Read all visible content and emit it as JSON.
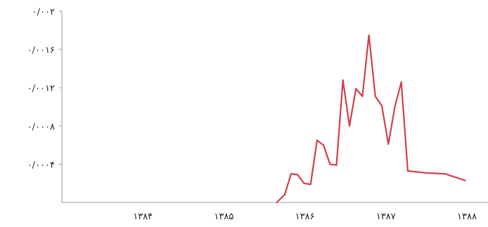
{
  "chart_data": {
    "type": "line",
    "title": "",
    "xlabel": "",
    "ylabel": "",
    "grid": false,
    "legend": "none",
    "xlim": [
      1383.0,
      1388.0
    ],
    "ylim": [
      0,
      0.002
    ],
    "x_ticks": [
      {
        "value": 1384,
        "label": "۱۳۸۴"
      },
      {
        "value": 1385,
        "label": "۱۳۸۵"
      },
      {
        "value": 1386,
        "label": "۱۳۸۶"
      },
      {
        "value": 1387,
        "label": "۱۳۸۷"
      },
      {
        "value": 1388,
        "label": "۱۳۸۸"
      }
    ],
    "y_ticks": [
      {
        "value": 0.0004,
        "label": "۰/۰۰۰۴"
      },
      {
        "value": 0.0008,
        "label": "۰/۰۰۰۸"
      },
      {
        "value": 0.0012,
        "label": "۰/۰۰۱۲"
      },
      {
        "value": 0.0016,
        "label": "۰/۰۰۱۶"
      },
      {
        "value": 0.002,
        "label": "۰/۰۰۲"
      }
    ],
    "series": [
      {
        "color": "#d0404a",
        "points": [
          [
            1385.65,
            0.0
          ],
          [
            1385.75,
            8e-05
          ],
          [
            1385.83,
            0.0003
          ],
          [
            1385.91,
            0.00029
          ],
          [
            1385.99,
            0.0002
          ],
          [
            1386.07,
            0.00019
          ],
          [
            1386.15,
            0.00065
          ],
          [
            1386.23,
            0.0006
          ],
          [
            1386.31,
            0.0004
          ],
          [
            1386.39,
            0.00039
          ],
          [
            1386.47,
            0.00128
          ],
          [
            1386.55,
            0.0008
          ],
          [
            1386.63,
            0.00119
          ],
          [
            1386.71,
            0.00111
          ],
          [
            1386.79,
            0.00175
          ],
          [
            1386.87,
            0.00111
          ],
          [
            1386.95,
            0.00101
          ],
          [
            1387.03,
            0.00061
          ],
          [
            1387.11,
            0.001
          ],
          [
            1387.19,
            0.00126
          ],
          [
            1387.27,
            0.00033
          ],
          [
            1387.49,
            0.00031
          ],
          [
            1387.73,
            0.0003
          ],
          [
            1387.98,
            0.00023
          ]
        ]
      }
    ]
  }
}
